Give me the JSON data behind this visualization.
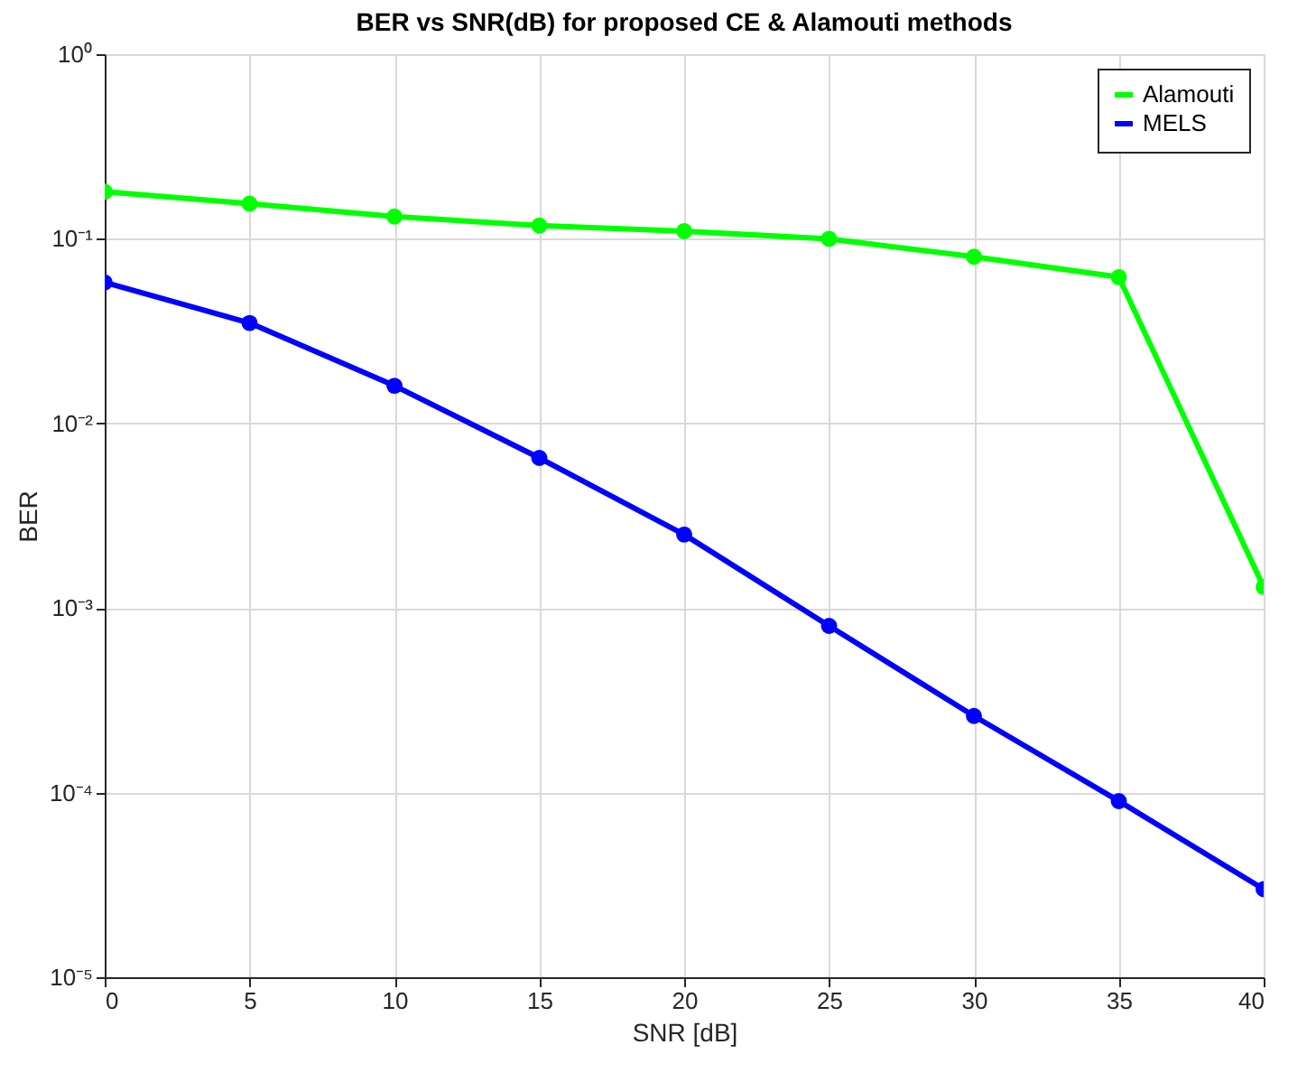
{
  "chart_data": {
    "type": "line",
    "title": "BER vs SNR(dB) for proposed CE & Alamouti methods",
    "xlabel": "SNR [dB]",
    "ylabel": "BER",
    "x": [
      0,
      5,
      10,
      15,
      20,
      25,
      30,
      35,
      40
    ],
    "series": [
      {
        "name": "Alamouti",
        "color": "#00ff00",
        "values": [
          0.18,
          0.155,
          0.132,
          0.118,
          0.11,
          0.1,
          0.08,
          0.062,
          0.0013
        ]
      },
      {
        "name": "MELS",
        "color": "#0000ff",
        "values": [
          0.058,
          0.035,
          0.016,
          0.0065,
          0.0025,
          0.0008,
          0.00026,
          9e-05,
          3e-05
        ]
      }
    ],
    "xlim": [
      0,
      40
    ],
    "xticks": [
      0,
      5,
      10,
      15,
      20,
      25,
      30,
      35,
      40
    ],
    "ylim": [
      1e-05,
      1
    ],
    "yticks": [
      {
        "value": 1e-05,
        "label": "10⁻⁵"
      },
      {
        "value": 0.0001,
        "label": "10⁻⁴"
      },
      {
        "value": 0.001,
        "label": "10⁻³"
      },
      {
        "value": 0.01,
        "label": "10⁻²"
      },
      {
        "value": 0.1,
        "label": "10⁻¹"
      },
      {
        "value": 1,
        "label": "10⁰"
      }
    ],
    "log": "y",
    "grid": true,
    "legend": "top right",
    "marker": "circle",
    "line_style": "solid"
  }
}
